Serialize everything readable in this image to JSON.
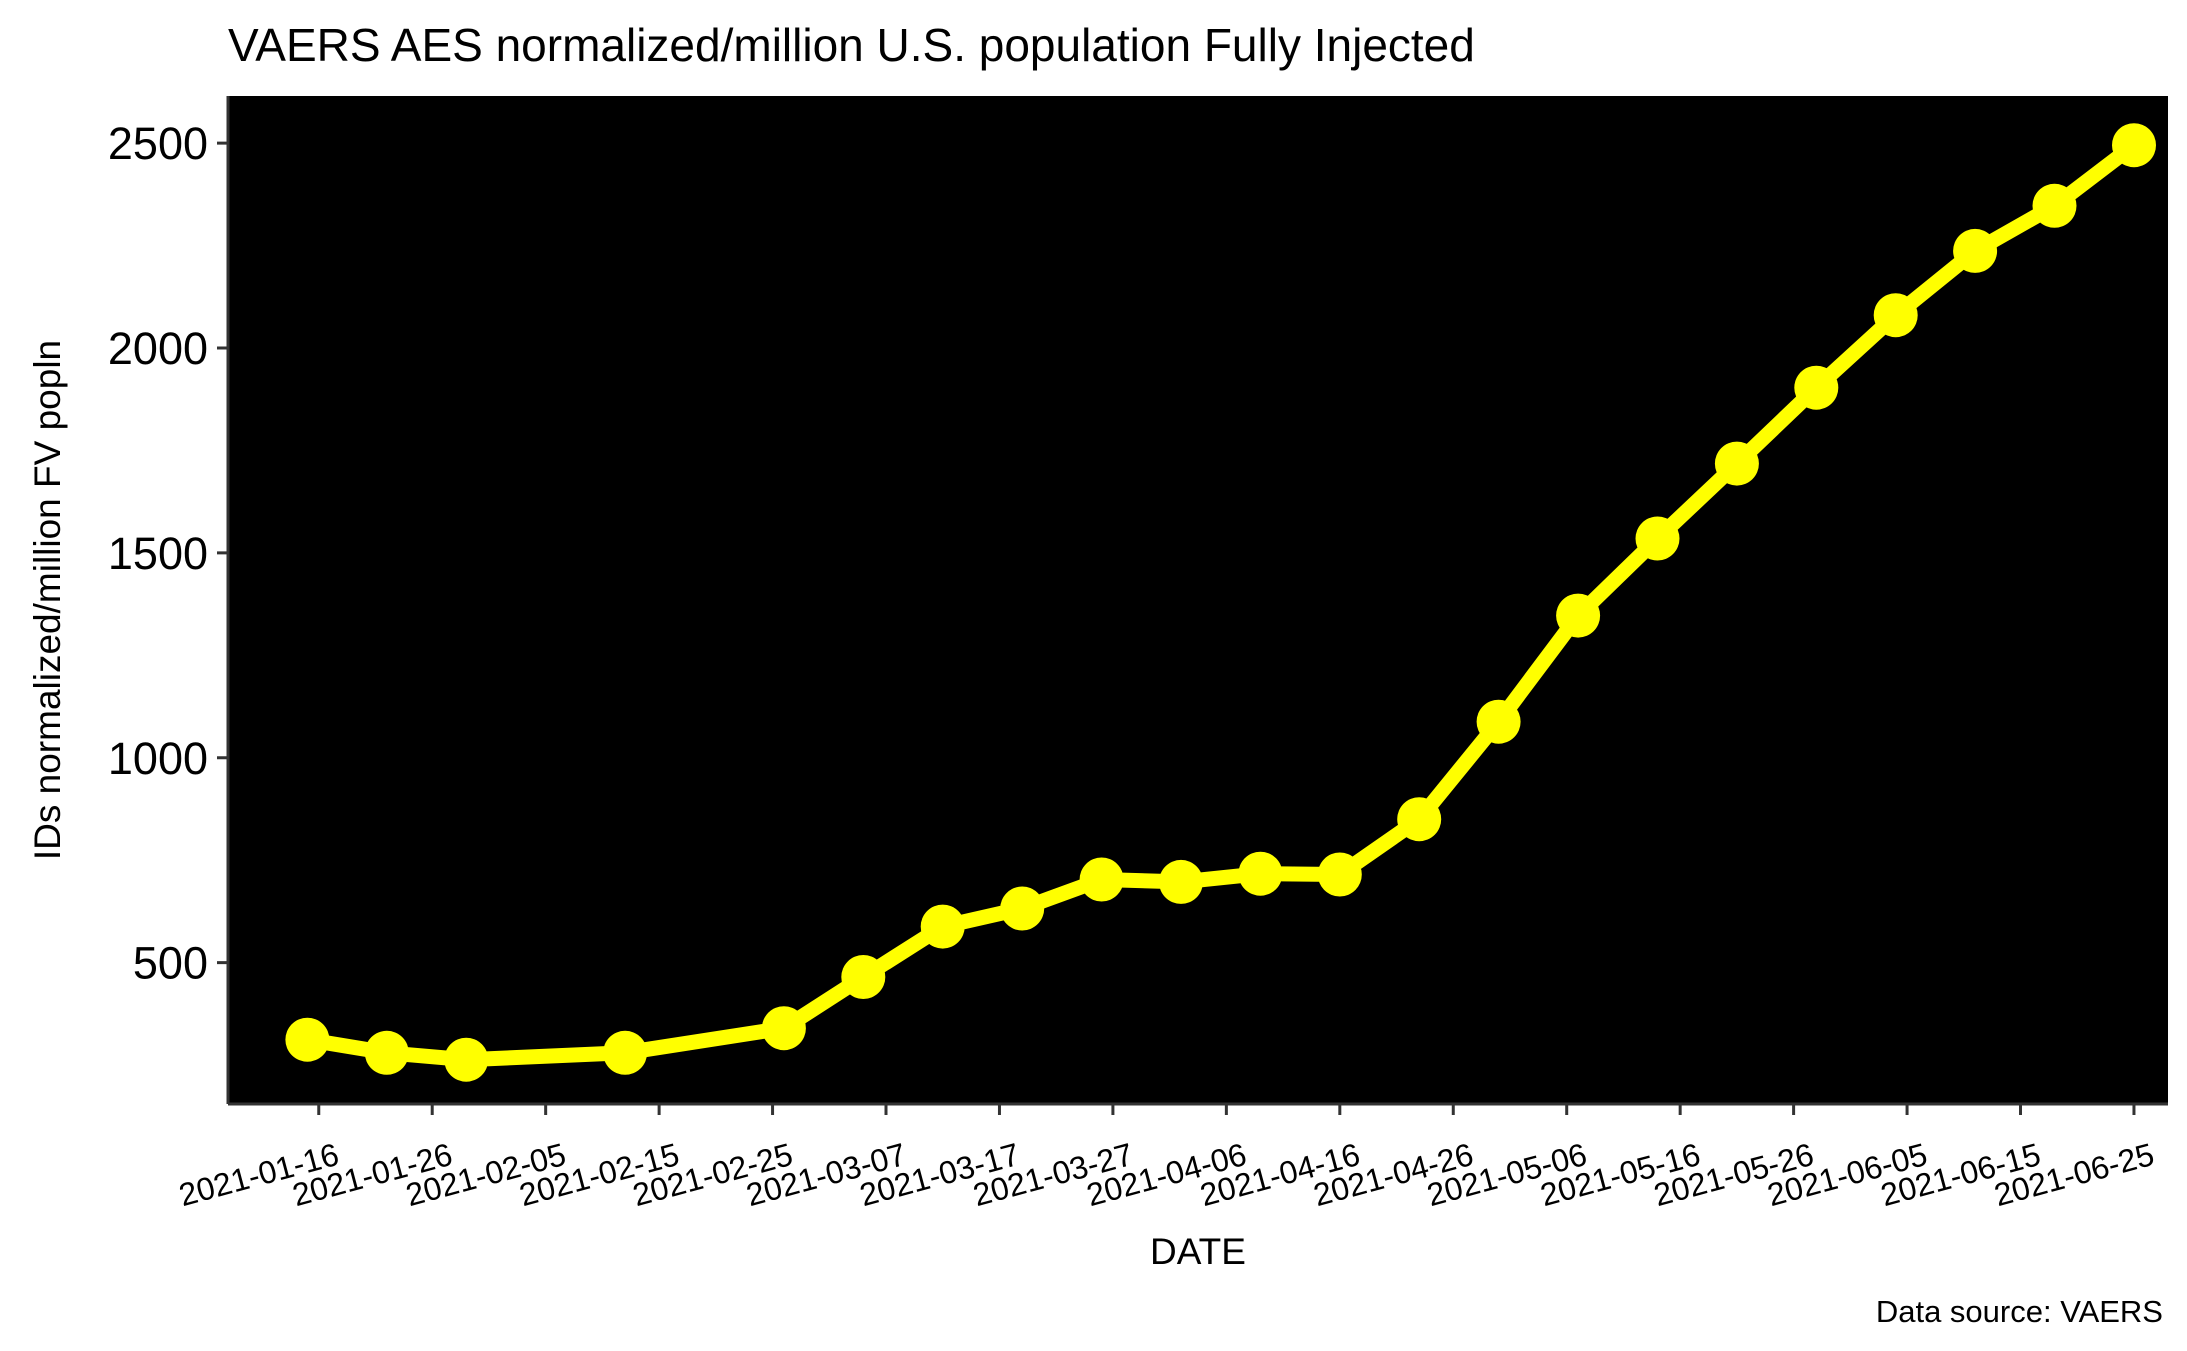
{
  "chart_data": {
    "type": "line",
    "title": "VAERS AES normalized/million U.S. population Fully Injected",
    "xlabel": "DATE",
    "ylabel": "IDs normalized/million FV popln",
    "caption": "Data source: VAERS",
    "x_axis_type": "date",
    "x_ticks": [
      "2021-01-16",
      "2021-01-26",
      "2021-02-05",
      "2021-02-15",
      "2021-02-25",
      "2021-03-07",
      "2021-03-17",
      "2021-03-27",
      "2021-04-06",
      "2021-04-16",
      "2021-04-26",
      "2021-05-06",
      "2021-05-16",
      "2021-05-26",
      "2021-06-05",
      "2021-06-15",
      "2021-06-25"
    ],
    "y_ticks": [
      500,
      1000,
      1500,
      2000,
      2500
    ],
    "xlim": [
      "2021-01-08",
      "2021-06-28"
    ],
    "ylim": [
      155,
      2615
    ],
    "grid": false,
    "series": [
      {
        "x": [
          "2021-01-15",
          "2021-01-22",
          "2021-01-29",
          "2021-02-12",
          "2021-02-26",
          "2021-03-05",
          "2021-03-12",
          "2021-03-19",
          "2021-03-26",
          "2021-04-02",
          "2021-04-09",
          "2021-04-16",
          "2021-04-23",
          "2021-04-30",
          "2021-05-07",
          "2021-05-14",
          "2021-05-21",
          "2021-05-28",
          "2021-06-04",
          "2021-06-11",
          "2021-06-18",
          "2021-06-25"
        ],
        "y": [
          312,
          280,
          263,
          280,
          340,
          465,
          588,
          632,
          703,
          697,
          717,
          715,
          850,
          1088,
          1347,
          1535,
          1718,
          1903,
          2080,
          2237,
          2347,
          2495
        ]
      }
    ],
    "colors": {
      "panel_background": "#000000",
      "series": "#FFFF00",
      "axis": "#333333",
      "text": "#000000"
    }
  }
}
